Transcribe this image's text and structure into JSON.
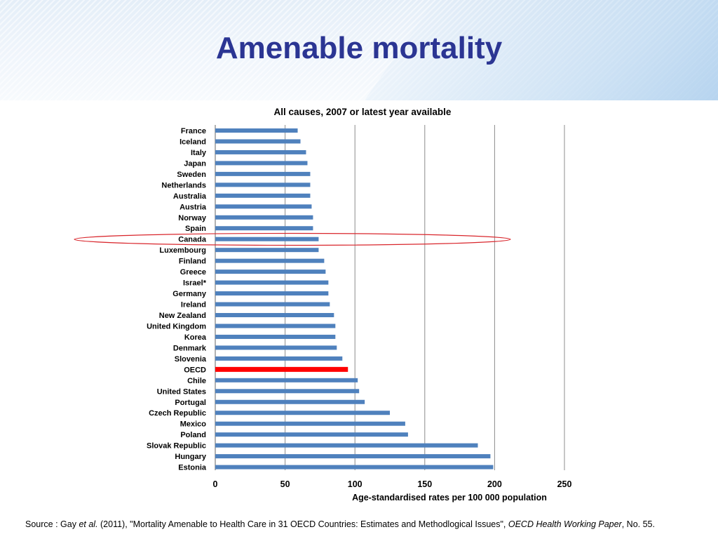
{
  "slide": {
    "title": "Amenable mortality"
  },
  "source": {
    "prefix": "Source : Gay ",
    "etal": "et al.",
    "middle": " (2011), \"Mortality Amenable to Health Care in 31 OECD Countries: Estimates and Methodlogical Issues\", ",
    "paper": "OECD Health Working Paper",
    "suffix": ", No. 55."
  },
  "colors": {
    "bar": "#4f81bd",
    "highlight_bar": "#ff0000",
    "highlight_ring": "#d9262c",
    "title": "#2b3593"
  },
  "chart_data": {
    "type": "bar",
    "orientation": "horizontal",
    "title": "All causes, 2007 or latest year available",
    "xlabel": "Age-standardised rates per 100 000 population",
    "ylabel": "",
    "xlim": [
      0,
      250
    ],
    "xticks": [
      0,
      50,
      100,
      150,
      200,
      250
    ],
    "grid": true,
    "categories": [
      "France",
      "Iceland",
      "Italy",
      "Japan",
      "Sweden",
      "Netherlands",
      "Australia",
      "Austria",
      "Norway",
      "Spain",
      "Canada",
      "Luxembourg",
      "Finland",
      "Greece",
      "Israel*",
      "Germany",
      "Ireland",
      "New Zealand",
      "United Kingdom",
      "Korea",
      "Denmark",
      "Slovenia",
      "OECD",
      "Chile",
      "United States",
      "Portugal",
      "Czech Republic",
      "Mexico",
      "Poland",
      "Slovak Republic",
      "Hungary",
      "Estonia"
    ],
    "values": [
      59,
      61,
      65,
      66,
      68,
      68,
      68,
      69,
      70,
      70,
      74,
      74,
      78,
      79,
      81,
      81,
      82,
      85,
      86,
      86,
      87,
      91,
      95,
      102,
      103,
      107,
      125,
      136,
      138,
      188,
      197,
      199
    ],
    "highlighted_bar": "OECD",
    "circled_category": "Canada"
  }
}
